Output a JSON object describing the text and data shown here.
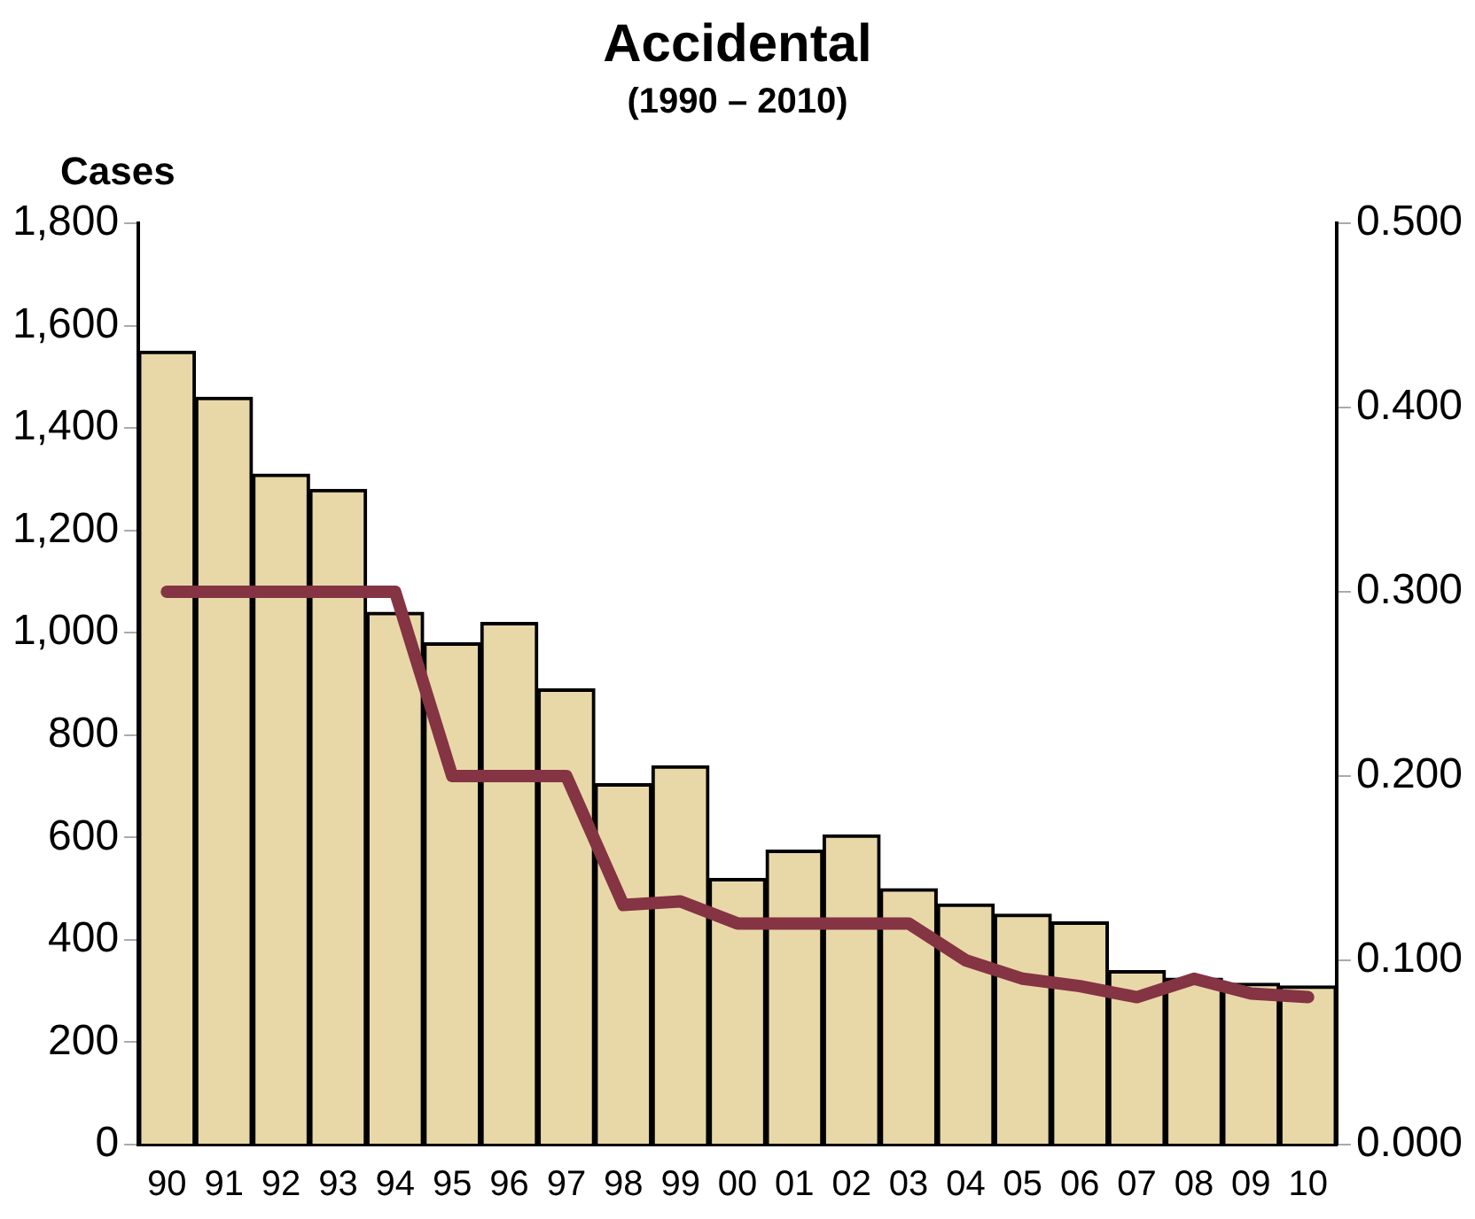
{
  "chart_data": {
    "type": "bar",
    "title": "Accidental",
    "subtitle": "(1990 – 2010)",
    "ylabel": "Cases",
    "categories": [
      "90",
      "91",
      "92",
      "93",
      "94",
      "95",
      "96",
      "97",
      "98",
      "99",
      "00",
      "01",
      "02",
      "03",
      "04",
      "05",
      "06",
      "07",
      "08",
      "09",
      "10"
    ],
    "series": [
      {
        "color": "#e8d8a8",
        "values": [
          1550,
          1460,
          1310,
          1280,
          1040,
          980,
          1020,
          890,
          705,
          740,
          520,
          575,
          605,
          500,
          470,
          450,
          435,
          340,
          325,
          315,
          310
        ]
      },
      {
        "type": "line",
        "axis": "y2",
        "color": "#843443",
        "values": [
          0.3,
          0.3,
          0.3,
          0.3,
          0.3,
          0.2,
          0.2,
          0.2,
          0.13,
          0.132,
          0.12,
          0.12,
          0.12,
          0.12,
          0.1,
          0.09,
          0.086,
          0.08,
          0.09,
          0.082,
          0.08
        ]
      }
    ],
    "ylim": [
      0,
      1800
    ],
    "yticks": [
      0,
      200,
      400,
      600,
      800,
      {
        "value": 1000,
        "label": "1,000"
      },
      {
        "value": 1200,
        "label": "1,200"
      },
      {
        "value": 1400,
        "label": "1,400"
      },
      {
        "value": 1600,
        "label": "1,600"
      },
      {
        "value": 1800,
        "label": "1,800"
      }
    ],
    "y2lim": [
      0,
      0.5
    ],
    "y2ticks": [
      {
        "value": 0,
        "label": "0.000"
      },
      {
        "value": 0.1,
        "label": "0.100"
      },
      {
        "value": 0.2,
        "label": "0.200"
      },
      {
        "value": 0.3,
        "label": "0.300"
      },
      {
        "value": 0.4,
        "label": "0.400"
      },
      {
        "value": 0.5,
        "label": "0.500"
      }
    ],
    "grid": false,
    "legend": false,
    "marker": "none",
    "line_style": "solid"
  }
}
